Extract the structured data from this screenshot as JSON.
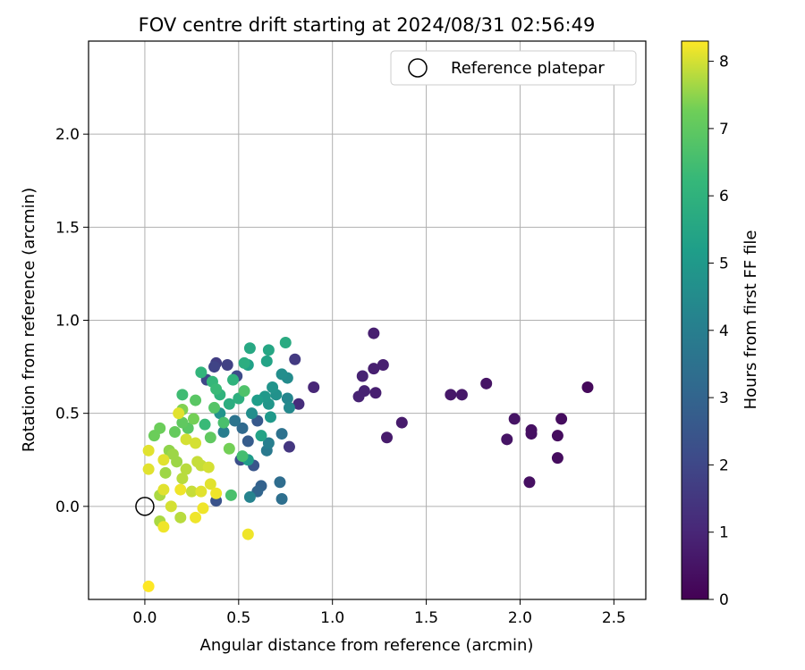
{
  "chart_data": {
    "type": "scatter",
    "title": "FOV centre drift starting at 2024/08/31 02:56:49",
    "xlabel": "Angular distance from reference (arcmin)",
    "ylabel": "Rotation from reference (arcmin)",
    "xlim": [
      -0.3,
      2.67
    ],
    "ylim": [
      -0.5,
      2.5
    ],
    "xticks": [
      "0.0",
      "0.5",
      "1.0",
      "1.5",
      "2.0",
      "2.5"
    ],
    "yticks": [
      "0.0",
      "0.5",
      "1.0",
      "1.5",
      "2.0"
    ],
    "grid": true,
    "legend": {
      "position": "top-right",
      "entries": [
        "Reference platepar"
      ]
    },
    "reference_point": {
      "label": "Reference platepar",
      "x": 0.0,
      "y": 0.0
    },
    "colorbar": {
      "label": "Hours from first FF file",
      "colormap": "viridis",
      "range": [
        0,
        8.3
      ],
      "ticks": [
        "0",
        "1",
        "2",
        "3",
        "4",
        "5",
        "6",
        "7",
        "8"
      ]
    },
    "points": [
      {
        "x": 2.36,
        "y": 0.64,
        "h": 0.2
      },
      {
        "x": 2.22,
        "y": 0.47,
        "h": 0.3
      },
      {
        "x": 2.2,
        "y": 0.38,
        "h": 0.3
      },
      {
        "x": 2.2,
        "y": 0.26,
        "h": 0.3
      },
      {
        "x": 2.06,
        "y": 0.41,
        "h": 0.4
      },
      {
        "x": 2.06,
        "y": 0.39,
        "h": 0.4
      },
      {
        "x": 2.05,
        "y": 0.13,
        "h": 0.4
      },
      {
        "x": 1.97,
        "y": 0.47,
        "h": 0.5
      },
      {
        "x": 1.93,
        "y": 0.36,
        "h": 0.5
      },
      {
        "x": 1.82,
        "y": 0.66,
        "h": 0.5
      },
      {
        "x": 1.69,
        "y": 0.6,
        "h": 0.6
      },
      {
        "x": 1.63,
        "y": 0.6,
        "h": 0.6
      },
      {
        "x": 1.37,
        "y": 0.45,
        "h": 0.7
      },
      {
        "x": 1.29,
        "y": 0.37,
        "h": 0.7
      },
      {
        "x": 1.27,
        "y": 0.76,
        "h": 0.8
      },
      {
        "x": 1.22,
        "y": 0.93,
        "h": 0.8
      },
      {
        "x": 1.22,
        "y": 0.74,
        "h": 0.8
      },
      {
        "x": 1.23,
        "y": 0.61,
        "h": 0.8
      },
      {
        "x": 1.16,
        "y": 0.7,
        "h": 0.9
      },
      {
        "x": 1.17,
        "y": 0.62,
        "h": 0.9
      },
      {
        "x": 1.14,
        "y": 0.59,
        "h": 0.9
      },
      {
        "x": 0.9,
        "y": 0.64,
        "h": 1.0
      },
      {
        "x": 0.82,
        "y": 0.55,
        "h": 1.2
      },
      {
        "x": 0.77,
        "y": 0.32,
        "h": 1.5
      },
      {
        "x": 0.8,
        "y": 0.79,
        "h": 1.6
      },
      {
        "x": 0.38,
        "y": 0.77,
        "h": 1.7
      },
      {
        "x": 0.44,
        "y": 0.76,
        "h": 1.8
      },
      {
        "x": 0.37,
        "y": 0.75,
        "h": 1.9
      },
      {
        "x": 0.33,
        "y": 0.68,
        "h": 2.0
      },
      {
        "x": 0.49,
        "y": 0.7,
        "h": 2.1
      },
      {
        "x": 0.51,
        "y": 0.25,
        "h": 2.2
      },
      {
        "x": 0.38,
        "y": 0.03,
        "h": 2.4
      },
      {
        "x": 0.58,
        "y": 0.22,
        "h": 2.5
      },
      {
        "x": 0.6,
        "y": 0.46,
        "h": 2.6
      },
      {
        "x": 0.55,
        "y": 0.35,
        "h": 2.7
      },
      {
        "x": 0.62,
        "y": 0.11,
        "h": 2.9
      },
      {
        "x": 0.6,
        "y": 0.08,
        "h": 3.0
      },
      {
        "x": 0.72,
        "y": 0.13,
        "h": 3.3
      },
      {
        "x": 0.73,
        "y": 0.04,
        "h": 3.4
      },
      {
        "x": 0.73,
        "y": 0.39,
        "h": 3.5
      },
      {
        "x": 0.65,
        "y": 0.3,
        "h": 3.8
      },
      {
        "x": 0.66,
        "y": 0.34,
        "h": 4.0
      },
      {
        "x": 0.56,
        "y": 0.05,
        "h": 4.2
      },
      {
        "x": 0.76,
        "y": 0.58,
        "h": 4.3
      },
      {
        "x": 0.77,
        "y": 0.53,
        "h": 4.4
      },
      {
        "x": 0.76,
        "y": 0.69,
        "h": 4.5
      },
      {
        "x": 0.73,
        "y": 0.71,
        "h": 4.6
      },
      {
        "x": 0.7,
        "y": 0.6,
        "h": 4.7
      },
      {
        "x": 0.68,
        "y": 0.64,
        "h": 4.8
      },
      {
        "x": 0.66,
        "y": 0.55,
        "h": 4.9
      },
      {
        "x": 0.64,
        "y": 0.59,
        "h": 5.0
      },
      {
        "x": 0.55,
        "y": 0.25,
        "h": 5.1
      },
      {
        "x": 0.6,
        "y": 0.57,
        "h": 5.2
      },
      {
        "x": 0.55,
        "y": 0.76,
        "h": 5.3
      },
      {
        "x": 0.65,
        "y": 0.78,
        "h": 5.4
      },
      {
        "x": 0.66,
        "y": 0.84,
        "h": 5.5
      },
      {
        "x": 0.56,
        "y": 0.85,
        "h": 5.6
      },
      {
        "x": 0.75,
        "y": 0.88,
        "h": 5.7
      },
      {
        "x": 0.53,
        "y": 0.77,
        "h": 5.8
      },
      {
        "x": 0.5,
        "y": 0.58,
        "h": 5.9
      },
      {
        "x": 0.47,
        "y": 0.68,
        "h": 6.0
      },
      {
        "x": 0.3,
        "y": 0.72,
        "h": 6.1
      },
      {
        "x": 0.36,
        "y": 0.67,
        "h": 6.2
      },
      {
        "x": 0.38,
        "y": 0.63,
        "h": 6.3
      },
      {
        "x": 0.2,
        "y": 0.6,
        "h": 6.4
      },
      {
        "x": 0.52,
        "y": 0.27,
        "h": 6.5
      },
      {
        "x": 0.46,
        "y": 0.06,
        "h": 6.6
      },
      {
        "x": 0.53,
        "y": 0.62,
        "h": 6.7
      },
      {
        "x": 0.37,
        "y": 0.53,
        "h": 6.8
      },
      {
        "x": 0.23,
        "y": 0.42,
        "h": 6.9
      },
      {
        "x": 0.2,
        "y": 0.45,
        "h": 7.0
      },
      {
        "x": 0.16,
        "y": 0.4,
        "h": 7.1
      },
      {
        "x": 0.08,
        "y": 0.42,
        "h": 7.2
      },
      {
        "x": 0.05,
        "y": 0.38,
        "h": 7.2
      },
      {
        "x": 0.26,
        "y": 0.47,
        "h": 7.3
      },
      {
        "x": 0.2,
        "y": 0.52,
        "h": 7.4
      },
      {
        "x": 0.13,
        "y": 0.3,
        "h": 7.5
      },
      {
        "x": 0.17,
        "y": 0.24,
        "h": 7.6
      },
      {
        "x": 0.11,
        "y": 0.18,
        "h": 7.6
      },
      {
        "x": 0.08,
        "y": 0.06,
        "h": 7.7
      },
      {
        "x": 0.08,
        "y": -0.08,
        "h": 7.7
      },
      {
        "x": 0.19,
        "y": -0.06,
        "h": 7.8
      },
      {
        "x": 0.22,
        "y": 0.2,
        "h": 7.8
      },
      {
        "x": 0.25,
        "y": 0.08,
        "h": 7.9
      },
      {
        "x": 0.3,
        "y": 0.22,
        "h": 7.9
      },
      {
        "x": 0.34,
        "y": 0.21,
        "h": 8.0
      },
      {
        "x": 0.27,
        "y": 0.34,
        "h": 8.0
      },
      {
        "x": 0.22,
        "y": 0.36,
        "h": 8.0
      },
      {
        "x": 0.18,
        "y": 0.5,
        "h": 8.1
      },
      {
        "x": 0.1,
        "y": 0.25,
        "h": 8.1
      },
      {
        "x": 0.02,
        "y": 0.3,
        "h": 8.1
      },
      {
        "x": 0.02,
        "y": 0.2,
        "h": 8.1
      },
      {
        "x": 0.1,
        "y": -0.11,
        "h": 8.2
      },
      {
        "x": 0.27,
        "y": -0.06,
        "h": 8.2
      },
      {
        "x": 0.38,
        "y": 0.07,
        "h": 8.2
      },
      {
        "x": 0.55,
        "y": -0.15,
        "h": 8.2
      },
      {
        "x": 0.02,
        "y": -0.43,
        "h": 8.3
      },
      {
        "x": 0.19,
        "y": 0.09,
        "h": 8.2
      },
      {
        "x": 0.31,
        "y": -0.01,
        "h": 8.2
      },
      {
        "x": 0.35,
        "y": 0.12,
        "h": 8.1
      },
      {
        "x": 0.3,
        "y": 0.08,
        "h": 8.1
      },
      {
        "x": 0.1,
        "y": 0.09,
        "h": 8.1
      },
      {
        "x": 0.14,
        "y": 0.0,
        "h": 8.0
      },
      {
        "x": 0.28,
        "y": 0.24,
        "h": 7.9
      },
      {
        "x": 0.2,
        "y": 0.15,
        "h": 7.8
      },
      {
        "x": 0.15,
        "y": 0.28,
        "h": 7.6
      },
      {
        "x": 0.35,
        "y": 0.37,
        "h": 7.0
      },
      {
        "x": 0.42,
        "y": 0.45,
        "h": 6.6
      },
      {
        "x": 0.45,
        "y": 0.31,
        "h": 7.3
      },
      {
        "x": 0.4,
        "y": 0.5,
        "h": 4.8
      },
      {
        "x": 0.42,
        "y": 0.4,
        "h": 4.0
      },
      {
        "x": 0.48,
        "y": 0.46,
        "h": 3.6
      },
      {
        "x": 0.52,
        "y": 0.42,
        "h": 3.2
      },
      {
        "x": 0.57,
        "y": 0.5,
        "h": 4.6
      },
      {
        "x": 0.62,
        "y": 0.38,
        "h": 5.4
      },
      {
        "x": 0.67,
        "y": 0.48,
        "h": 5.0
      },
      {
        "x": 0.45,
        "y": 0.55,
        "h": 5.8
      },
      {
        "x": 0.4,
        "y": 0.6,
        "h": 6.0
      },
      {
        "x": 0.32,
        "y": 0.44,
        "h": 6.3
      },
      {
        "x": 0.27,
        "y": 0.57,
        "h": 6.9
      }
    ]
  }
}
